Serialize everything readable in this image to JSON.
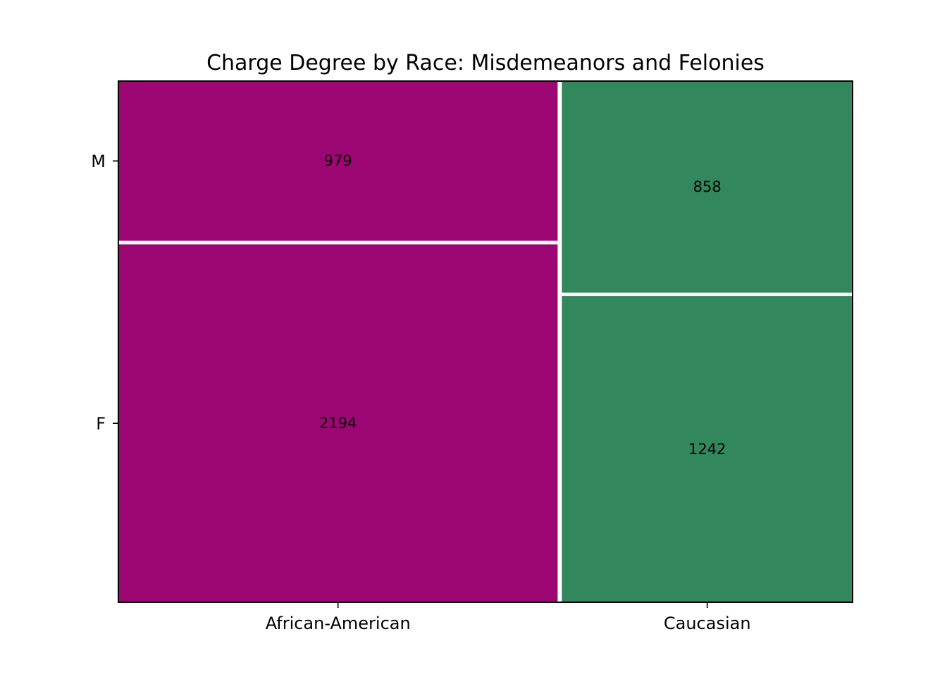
{
  "chart_data": {
    "type": "mosaic",
    "title": "Charge Degree by Race: Misdemeanors and Felonies",
    "xlabel": "",
    "ylabel": "",
    "categories": [
      "African-American",
      "Caucasian"
    ],
    "levels": [
      "F",
      "M"
    ],
    "series": [
      {
        "values": [
          2194,
          858
        ],
        "name": ""
      }
    ],
    "cells": [
      {
        "category": "African-American",
        "level": "F",
        "value": 2194,
        "color": "#9c0773"
      },
      {
        "category": "African-American",
        "level": "M",
        "value": 979,
        "color": "#9c0773"
      },
      {
        "category": "Caucasian",
        "level": "F",
        "value": 1242,
        "color": "#32875d"
      },
      {
        "category": "Caucasian",
        "level": "M",
        "value": 858,
        "color": "#32875d"
      }
    ],
    "colors": {
      "African-American": "#9c0773",
      "Caucasian": "#32875d"
    },
    "grid": false,
    "legend": "none"
  }
}
